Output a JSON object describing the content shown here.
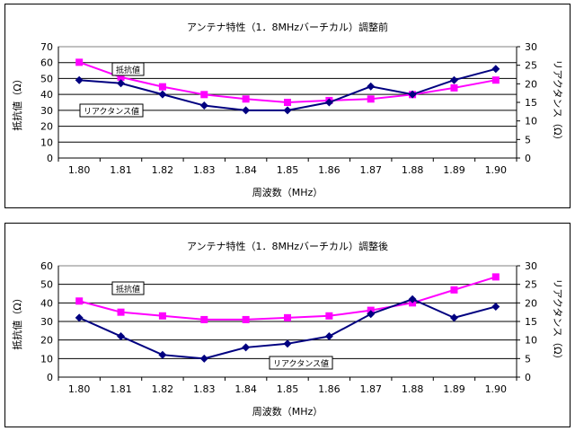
{
  "chart_data": [
    {
      "type": "line",
      "title": "アンテナ特性（1．8MHzバーチカル）調整前",
      "xlabel": "周波数（MHz）",
      "ylabel_left": "抵抗値（Ω）",
      "ylabel_right": "リアクタンス（Ω）",
      "x": [
        "1.80",
        "1.81",
        "1.82",
        "1.83",
        "1.84",
        "1.85",
        "1.86",
        "1.87",
        "1.88",
        "1.89",
        "1.90"
      ],
      "y_left": {
        "min": 0,
        "max": 70,
        "step": 10,
        "ticks": [
          "0",
          "10",
          "20",
          "30",
          "40",
          "50",
          "60",
          "70"
        ]
      },
      "y_right": {
        "min": 0,
        "max": 30,
        "step": 5,
        "ticks": [
          "0",
          "5",
          "10",
          "15",
          "20",
          "25",
          "30"
        ]
      },
      "grid": "horizontal",
      "series": [
        {
          "name": "抵抗値",
          "axis": "right",
          "color": "#ff00ff",
          "marker": "square",
          "values": [
            25.8,
            21.8,
            19.2,
            17.1,
            15.9,
            15.0,
            15.5,
            15.9,
            17.1,
            18.9,
            21.0
          ],
          "label_pos": "top-left"
        },
        {
          "name": "リアクタンス値",
          "axis": "left",
          "color": "#000080",
          "marker": "diamond",
          "values": [
            49,
            47,
            40,
            33,
            30,
            30,
            35,
            45,
            40,
            49,
            56
          ],
          "label_pos": "mid-left"
        }
      ]
    },
    {
      "type": "line",
      "title": "アンテナ特性（1．8MHzバーチカル）調整後",
      "xlabel": "周波数（MHz）",
      "ylabel_left": "抵抗値（Ω）",
      "ylabel_right": "リアクタンス（Ω）",
      "x": [
        "1.80",
        "1.81",
        "1.82",
        "1.83",
        "1.84",
        "1.85",
        "1.86",
        "1.87",
        "1.88",
        "1.89",
        "1.90"
      ],
      "y_left": {
        "min": 0,
        "max": 60,
        "step": 10,
        "ticks": [
          "0",
          "10",
          "20",
          "30",
          "40",
          "50",
          "60"
        ]
      },
      "y_right": {
        "min": 0,
        "max": 30,
        "step": 5,
        "ticks": [
          "0",
          "5",
          "10",
          "15",
          "20",
          "25",
          "30"
        ]
      },
      "grid": "horizontal",
      "series": [
        {
          "name": "抵抗値",
          "axis": "left",
          "color": "#ff00ff",
          "marker": "square",
          "values": [
            41,
            35,
            33,
            31,
            31,
            32,
            33,
            36,
            40,
            47,
            54
          ],
          "label_pos": "top-left"
        },
        {
          "name": "リアクタンス値",
          "axis": "right",
          "color": "#000080",
          "marker": "diamond",
          "values": [
            16,
            11,
            6,
            5,
            8,
            9,
            11,
            17,
            21,
            16,
            19
          ],
          "label_pos": "bottom-middle"
        }
      ]
    }
  ]
}
